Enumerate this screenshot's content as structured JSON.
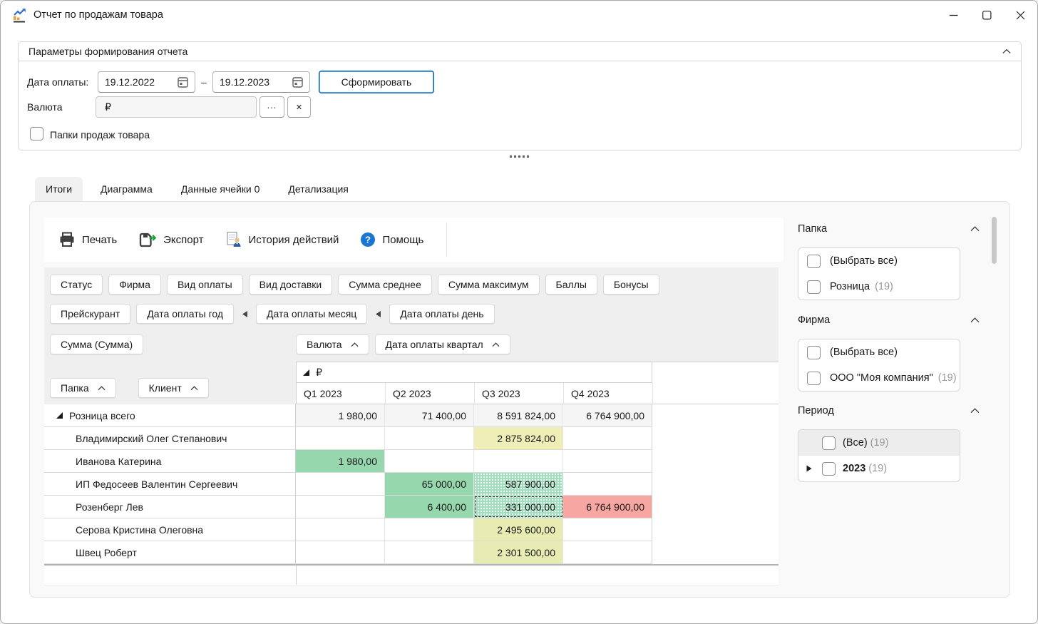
{
  "colors": {
    "accent_blue": "#0067c0",
    "help_icon_blue": "#1977d3",
    "cell_green": "#96d7ae",
    "cell_green_dotted": "#a3dcbe",
    "cell_yellow": "#f0eeb7",
    "cell_lime": "#e7ecb2",
    "cell_red": "#f7a6a1",
    "total_row_gray": "#f5f5f5"
  },
  "window": {
    "title": "Отчет по продажам товара"
  },
  "params": {
    "header": "Параметры формирования отчета",
    "date_label": "Дата оплаты:",
    "date_from": "19.12.2022",
    "date_to": "19.12.2023",
    "date_separator": "–",
    "generate_button": "Сформировать",
    "currency_label": "Валюта",
    "currency_value": "₽",
    "browse_button": "...",
    "clear_button": "✕",
    "folders_checkbox_label": "Папки продаж товара"
  },
  "tabs": [
    {
      "label": "Итоги",
      "active": true
    },
    {
      "label": "Диаграмма",
      "active": false
    },
    {
      "label": "Данные ячейки 0",
      "active": false
    },
    {
      "label": "Детализация",
      "active": false
    }
  ],
  "toolbar": {
    "items": [
      {
        "label": "Печать",
        "icon": "printer-icon",
        "name": "print-button"
      },
      {
        "label": "Экспорт",
        "icon": "export-icon",
        "name": "export-button"
      },
      {
        "label": "История действий",
        "icon": "history-icon",
        "name": "history-button"
      },
      {
        "label": "Помощь",
        "icon": "help-icon",
        "name": "help-button"
      }
    ]
  },
  "pivot": {
    "fields_row1": [
      "Статус",
      "Фирма",
      "Вид оплаты",
      "Вид доставки",
      "Сумма среднее",
      "Сумма максимум",
      "Баллы",
      "Бонусы"
    ],
    "fields_row2": [
      {
        "label": "Прейскурант",
        "connector_after": false
      },
      {
        "label": "Дата оплаты год",
        "connector_after": true
      },
      {
        "label": "Дата оплаты месяц",
        "connector_after": true
      },
      {
        "label": "Дата оплаты день",
        "connector_after": false
      }
    ],
    "data_field": "Сумма (Сумма)",
    "column_fields": [
      "Валюта",
      "Дата оплаты квартал"
    ],
    "row_fields": [
      "Папка",
      "Клиент"
    ],
    "currency_header": "₽",
    "columns": [
      "Q1 2023",
      "Q2 2023",
      "Q3 2023",
      "Q4 2023"
    ],
    "rows": [
      {
        "label": "Розница всего",
        "type": "total",
        "expanded": true,
        "cells": [
          {
            "value": "1 980,00",
            "hl": ""
          },
          {
            "value": "71 400,00",
            "hl": ""
          },
          {
            "value": "8 591 824,00",
            "hl": ""
          },
          {
            "value": "6 764 900,00",
            "hl": ""
          }
        ]
      },
      {
        "label": "Владимирский Олег Степанович",
        "type": "client",
        "cells": [
          {
            "value": "",
            "hl": ""
          },
          {
            "value": "",
            "hl": ""
          },
          {
            "value": "2 875 824,00",
            "hl": "yellow"
          },
          {
            "value": "",
            "hl": ""
          }
        ]
      },
      {
        "label": "Иванова Катерина",
        "type": "client",
        "cells": [
          {
            "value": "1 980,00",
            "hl": "green"
          },
          {
            "value": "",
            "hl": ""
          },
          {
            "value": "",
            "hl": ""
          },
          {
            "value": "",
            "hl": ""
          }
        ]
      },
      {
        "label": "ИП Федосеев Валентин Сергеевич",
        "type": "client",
        "cells": [
          {
            "value": "",
            "hl": ""
          },
          {
            "value": "65 000,00",
            "hl": "green"
          },
          {
            "value": "587 900,00",
            "hl": "green-dots"
          },
          {
            "value": "",
            "hl": ""
          }
        ]
      },
      {
        "label": "Розенберг Лев",
        "type": "client",
        "cells": [
          {
            "value": "",
            "hl": ""
          },
          {
            "value": "6 400,00",
            "hl": "green"
          },
          {
            "value": "331 000,00",
            "hl": "green-dots",
            "selected": true
          },
          {
            "value": "6 764 900,00",
            "hl": "red"
          }
        ]
      },
      {
        "label": "Серова Кристина Олеговна",
        "type": "client",
        "cells": [
          {
            "value": "",
            "hl": ""
          },
          {
            "value": "",
            "hl": ""
          },
          {
            "value": "2 495 600,00",
            "hl": "lime"
          },
          {
            "value": "",
            "hl": ""
          }
        ]
      },
      {
        "label": "Швец Роберт",
        "type": "client",
        "cells": [
          {
            "value": "",
            "hl": ""
          },
          {
            "value": "",
            "hl": ""
          },
          {
            "value": "2 301 500,00",
            "hl": "lime"
          },
          {
            "value": "",
            "hl": ""
          }
        ]
      }
    ]
  },
  "filters": {
    "sections": [
      {
        "title": "Папка",
        "name": "folder",
        "tree": false,
        "items": [
          {
            "label": "(Выбрать все)",
            "count": "",
            "checked": false
          },
          {
            "label": "Розница",
            "count": "(19)",
            "checked": false
          }
        ]
      },
      {
        "title": "Фирма",
        "name": "firm",
        "tree": false,
        "items": [
          {
            "label": "(Выбрать все)",
            "count": "",
            "checked": false
          },
          {
            "label": "ООО \"Моя компания\"",
            "count": "(19)",
            "checked": false
          }
        ]
      },
      {
        "title": "Период",
        "name": "period",
        "tree": true,
        "items": [
          {
            "label": "(Все)",
            "count": "(19)",
            "checked": false,
            "highlighted": true
          },
          {
            "label": "2023",
            "count": "(19)",
            "checked": false,
            "bold": true,
            "expandable": true
          }
        ]
      }
    ]
  }
}
